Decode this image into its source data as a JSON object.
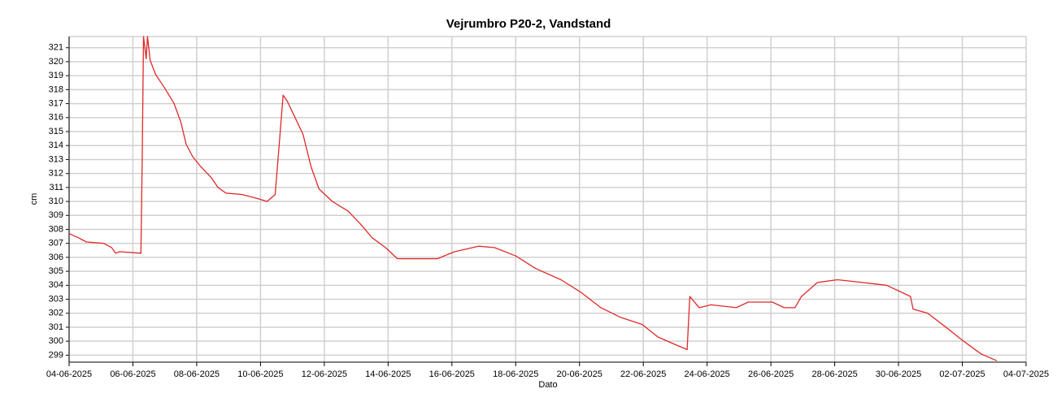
{
  "chart_data": {
    "type": "line",
    "title": "Vejrumbro P20-2, Vandstand",
    "x_label": "Dato",
    "y_label": "cm",
    "x": [
      "2025-06-04T00:00",
      "2025-06-04T07:00",
      "2025-06-04T13:00",
      "2025-06-05T02:00",
      "2025-06-05T08:00",
      "2025-06-05T11:00",
      "2025-06-05T14:00",
      "2025-06-06T06:00",
      "2025-06-06T07:00",
      "2025-06-06T08:00",
      "2025-06-06T10:00",
      "2025-06-06T11:00",
      "2025-06-06T13:00",
      "2025-06-06T17:00",
      "2025-06-07T00:00",
      "2025-06-07T07:00",
      "2025-06-07T12:00",
      "2025-06-07T16:00",
      "2025-06-07T21:00",
      "2025-06-08T03:00",
      "2025-06-08T11:00",
      "2025-06-08T16:00",
      "2025-06-08T22:00",
      "2025-06-09T10:00",
      "2025-06-09T22:00",
      "2025-06-10T05:00",
      "2025-06-10T11:00",
      "2025-06-10T14:00",
      "2025-06-10T17:00",
      "2025-06-10T20:00",
      "2025-06-11T02:00",
      "2025-06-11T08:00",
      "2025-06-11T14:00",
      "2025-06-11T20:00",
      "2025-06-12T06:00",
      "2025-06-12T18:00",
      "2025-06-13T03:00",
      "2025-06-13T12:00",
      "2025-06-13T22:00",
      "2025-06-14T07:00",
      "2025-06-15T01:00",
      "2025-06-15T13:00",
      "2025-06-16T02:00",
      "2025-06-16T20:00",
      "2025-06-17T08:00",
      "2025-06-18T00:00",
      "2025-06-18T15:00",
      "2025-06-19T10:00",
      "2025-06-20T01:00",
      "2025-06-20T16:00",
      "2025-06-21T07:00",
      "2025-06-21T23:00",
      "2025-06-22T11:00",
      "2025-06-22T23:00",
      "2025-06-23T09:00",
      "2025-06-23T11:00",
      "2025-06-23T18:00",
      "2025-06-24T03:00",
      "2025-06-24T22:00",
      "2025-06-25T07:00",
      "2025-06-26T01:00",
      "2025-06-26T10:00",
      "2025-06-26T18:00",
      "2025-06-26T23:00",
      "2025-06-27T11:00",
      "2025-06-28T02:00",
      "2025-06-28T21:00",
      "2025-06-29T15:00",
      "2025-06-30T09:00",
      "2025-06-30T11:00",
      "2025-06-30T22:00",
      "2025-07-01T13:00",
      "2025-07-02T01:00",
      "2025-07-02T14:00",
      "2025-07-03T02:00"
    ],
    "series": [
      {
        "name": "Vandstand",
        "color": "#e02828",
        "values": [
          307.7,
          307.4,
          307.1,
          307.0,
          306.7,
          306.3,
          306.4,
          306.3,
          313.0,
          321.8,
          320.2,
          321.8,
          320.1,
          319.1,
          318.1,
          317.0,
          315.7,
          314.1,
          313.2,
          312.5,
          311.7,
          311.0,
          310.6,
          310.5,
          310.2,
          310.0,
          310.5,
          314.0,
          317.6,
          317.2,
          316.0,
          314.8,
          312.5,
          310.9,
          310.0,
          309.3,
          308.4,
          307.4,
          306.7,
          305.9,
          305.9,
          305.9,
          306.4,
          306.8,
          306.7,
          306.1,
          305.2,
          304.4,
          303.5,
          302.4,
          301.7,
          301.2,
          300.3,
          299.8,
          299.4,
          303.2,
          302.4,
          302.6,
          302.4,
          302.8,
          302.8,
          302.4,
          302.4,
          303.2,
          304.2,
          304.4,
          304.2,
          304.0,
          303.2,
          302.3,
          302.0,
          300.9,
          300.0,
          299.1,
          298.6
        ]
      }
    ],
    "xlim": [
      "2025-06-04",
      "2025-07-04"
    ],
    "xticks": [
      {
        "value": "2025-06-04",
        "label": "04-06-2025"
      },
      {
        "value": "2025-06-06",
        "label": "06-06-2025"
      },
      {
        "value": "2025-06-08",
        "label": "08-06-2025"
      },
      {
        "value": "2025-06-10",
        "label": "10-06-2025"
      },
      {
        "value": "2025-06-12",
        "label": "12-06-2025"
      },
      {
        "value": "2025-06-14",
        "label": "14-06-2025"
      },
      {
        "value": "2025-06-16",
        "label": "16-06-2025"
      },
      {
        "value": "2025-06-18",
        "label": "18-06-2025"
      },
      {
        "value": "2025-06-20",
        "label": "20-06-2025"
      },
      {
        "value": "2025-06-22",
        "label": "22-06-2025"
      },
      {
        "value": "2025-06-24",
        "label": "24-06-2025"
      },
      {
        "value": "2025-06-26",
        "label": "26-06-2025"
      },
      {
        "value": "2025-06-28",
        "label": "28-06-2025"
      },
      {
        "value": "2025-06-30",
        "label": "30-06-2025"
      },
      {
        "value": "2025-07-02",
        "label": "02-07-2025"
      },
      {
        "value": "2025-07-04",
        "label": "04-07-2025"
      }
    ],
    "ylim": [
      298.5,
      321.8
    ],
    "yticks": [
      299,
      300,
      301,
      302,
      303,
      304,
      305,
      306,
      307,
      308,
      309,
      310,
      311,
      312,
      313,
      314,
      315,
      316,
      317,
      318,
      319,
      320,
      321
    ],
    "grid": true
  }
}
